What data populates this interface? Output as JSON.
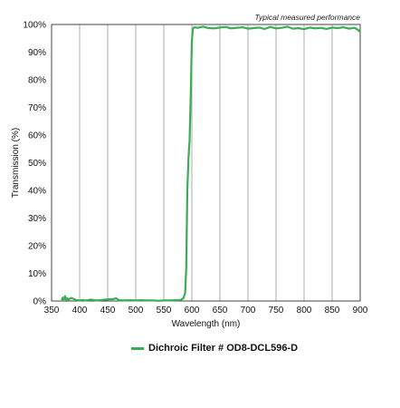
{
  "chart_data": {
    "type": "line",
    "note": "Typical measured performance",
    "xlabel": "Wavelength (nm)",
    "ylabel": "Transmission (%)",
    "xlim": [
      350,
      900
    ],
    "ylim": [
      0,
      100
    ],
    "x_ticks": [
      350,
      400,
      450,
      500,
      550,
      600,
      650,
      700,
      750,
      800,
      850,
      900
    ],
    "y_ticks": [
      0,
      10,
      20,
      30,
      40,
      50,
      60,
      70,
      80,
      90,
      100
    ],
    "y_tick_labels": [
      "0%",
      "10%",
      "20%",
      "30%",
      "40%",
      "50%",
      "60%",
      "70%",
      "80%",
      "90%",
      "100%"
    ],
    "grid": "vertical",
    "legend_position": "bottom-center",
    "series": [
      {
        "name": "Dichroic Filter # OD8-DCL596-D",
        "color": "#3cac55",
        "x": [
          368,
          370,
          372,
          374,
          376,
          378,
          380,
          385,
          390,
          395,
          400,
          405,
          410,
          415,
          420,
          430,
          440,
          450,
          460,
          465,
          470,
          480,
          490,
          500,
          510,
          520,
          530,
          540,
          550,
          560,
          570,
          580,
          585,
          588,
          590,
          592,
          594,
          596,
          598,
          600,
          602,
          604,
          610,
          620,
          630,
          640,
          650,
          660,
          670,
          680,
          690,
          700,
          710,
          720,
          730,
          740,
          750,
          760,
          770,
          780,
          790,
          800,
          810,
          820,
          830,
          840,
          850,
          860,
          870,
          880,
          890,
          895,
          898,
          900
        ],
        "y": [
          0.3,
          1.2,
          0.6,
          1.8,
          0.4,
          1.0,
          0.5,
          1.1,
          0.7,
          0.3,
          0.2,
          0.4,
          0.2,
          0.3,
          0.5,
          0.2,
          0.4,
          0.6,
          0.7,
          1.0,
          0.3,
          0.2,
          0.3,
          0.2,
          0.3,
          0.2,
          0.2,
          0.1,
          0.2,
          0.2,
          0.3,
          0.4,
          1.0,
          3.0,
          12.0,
          40.0,
          52.0,
          58.0,
          75.0,
          94.0,
          98.5,
          99.0,
          98.8,
          99.2,
          98.7,
          98.6,
          98.9,
          99.1,
          98.6,
          98.8,
          99.0,
          98.5,
          98.7,
          98.9,
          98.4,
          99.1,
          98.6,
          98.8,
          99.2,
          98.5,
          98.7,
          98.3,
          98.9,
          98.6,
          98.8,
          98.4,
          98.9,
          98.7,
          99.0,
          98.5,
          98.8,
          98.2,
          97.6,
          98.1
        ]
      }
    ]
  }
}
